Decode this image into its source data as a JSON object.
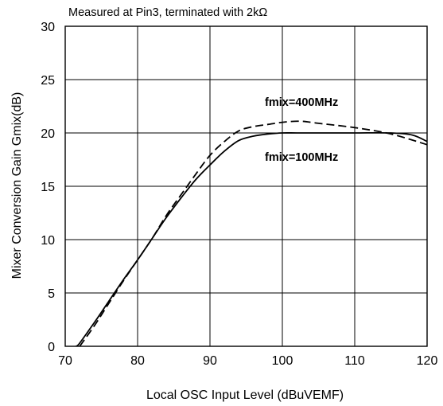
{
  "chart_data": {
    "type": "line",
    "annotation": "Measured at Pin3, terminated with 2kΩ",
    "xlabel": "Local OSC Input Level (dBuVEMF)",
    "ylabel": "Mixer Conversion Gain Gmix(dB)",
    "xlim": [
      70,
      120
    ],
    "ylim": [
      0,
      30
    ],
    "x_ticks": [
      70,
      80,
      90,
      100,
      110,
      120
    ],
    "y_ticks": [
      0,
      5,
      10,
      15,
      20,
      25,
      30
    ],
    "grid": true,
    "series": [
      {
        "name": "fmix=100MHz",
        "line_style": "solid",
        "color": "#000000",
        "x": [
          71.5,
          72,
          74,
          76,
          78,
          80,
          82,
          84,
          86,
          88,
          90,
          92,
          94,
          96,
          98,
          100,
          102,
          105,
          110,
          115,
          118,
          120
        ],
        "y": [
          0,
          0.3,
          2.2,
          4.2,
          6.2,
          8.1,
          10.1,
          12.1,
          13.9,
          15.6,
          17.0,
          18.3,
          19.3,
          19.7,
          19.9,
          20.0,
          20.0,
          20.0,
          20.0,
          20.0,
          19.8,
          19.2
        ]
      },
      {
        "name": "fmix=400MHz",
        "line_style": "dashed",
        "color": "#000000",
        "x": [
          72,
          74,
          76,
          78,
          80,
          82,
          84,
          86,
          88,
          90,
          92,
          94,
          96,
          98,
          100,
          102.5,
          105,
          110,
          115,
          120
        ],
        "y": [
          0,
          1.9,
          4.0,
          6.1,
          8.1,
          10.1,
          12.3,
          14.2,
          16.1,
          17.9,
          19.2,
          20.2,
          20.6,
          20.8,
          21.0,
          21.1,
          20.9,
          20.5,
          19.9,
          18.9
        ]
      }
    ]
  }
}
